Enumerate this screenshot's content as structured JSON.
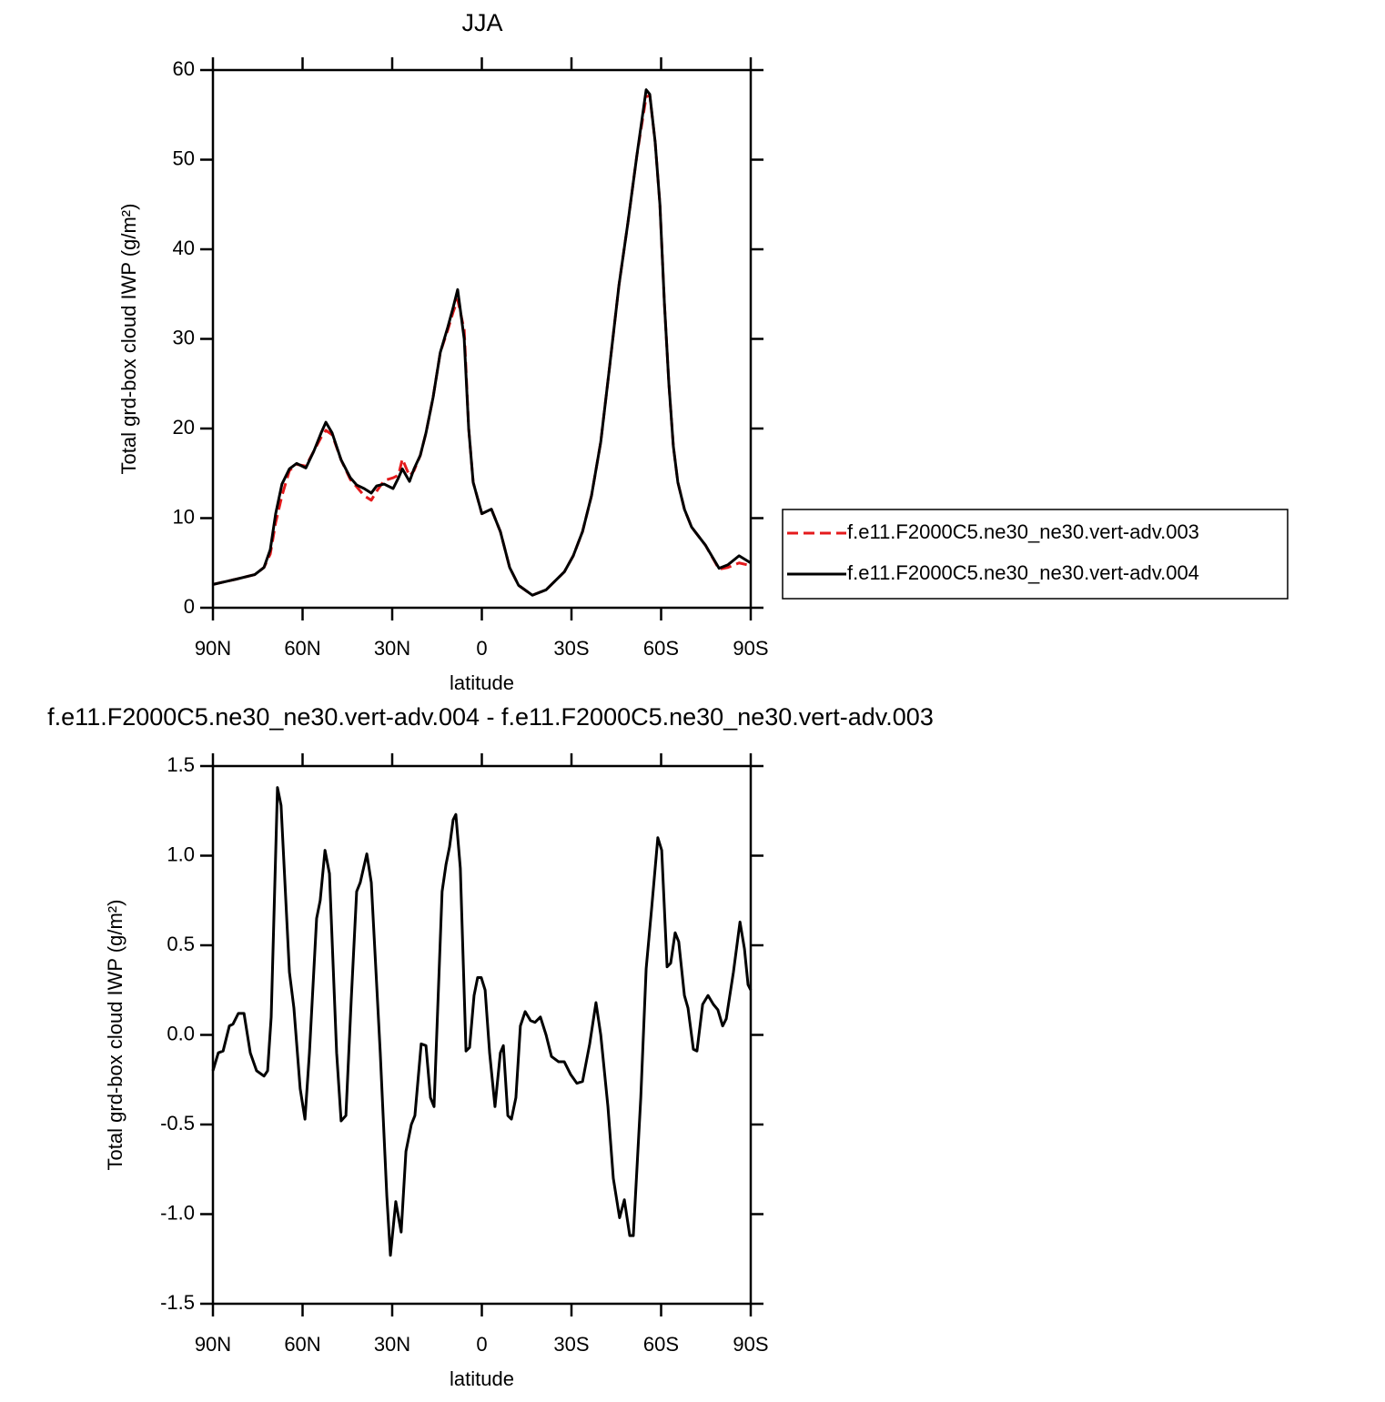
{
  "chart_data": [
    {
      "type": "line",
      "title": "JJA",
      "xlabel": "latitude",
      "ylabel": "Total grd-box cloud IWP (g/m²)",
      "x": [
        90,
        82.1,
        76,
        72.9,
        70.8,
        69,
        66.9,
        64.4,
        62,
        58.9,
        56.2,
        53.8,
        52.2,
        50.1,
        47.1,
        44,
        41.9,
        39.4,
        37,
        35.2,
        32.7,
        29.7,
        27.9,
        26.6,
        24.2,
        22.7,
        20.6,
        18.7,
        16.3,
        13.9,
        11.4,
        9.6,
        8.1,
        5.9,
        4.4,
        2.9,
        0,
        -3.2,
        -6.2,
        -9.3,
        -12.3,
        -16.9,
        -21.5,
        -27.6,
        -30.6,
        -33.7,
        -36.7,
        -39.8,
        -42.8,
        -45.9,
        -48.9,
        -51.9,
        -55,
        -56.2,
        -58,
        -59.6,
        -61.1,
        -62.6,
        -64.1,
        -65.6,
        -67.8,
        -70.2,
        -74.8,
        -79.4,
        -82.4,
        -86.1,
        -90
      ],
      "series": [
        {
          "name": "f.e11.F2000C5.ne30_ne30.vert-adv.003",
          "color": "#e41a1c",
          "dashed": true,
          "values": [
            2.6,
            3.2,
            3.7,
            4.5,
            6.0,
            9.5,
            12.5,
            15.3,
            16.0,
            15.8,
            17.5,
            19.0,
            19.8,
            19.3,
            16.5,
            14.3,
            13.5,
            12.5,
            12.0,
            13.0,
            14.2,
            14.5,
            14.8,
            16.6,
            14.7,
            15.3,
            17,
            19.5,
            23.5,
            28.5,
            31,
            33,
            34.4,
            31,
            20,
            14,
            10.5,
            11,
            8.5,
            4.5,
            2.5,
            1.4,
            2,
            4,
            5.8,
            8.5,
            12.5,
            18.5,
            27,
            36,
            43,
            50.5,
            57.0,
            57.2,
            52,
            45,
            34,
            25,
            18,
            14,
            11,
            9,
            7,
            4.3,
            4.5,
            5.0,
            4.7
          ]
        },
        {
          "name": "f.e11.F2000C5.ne30_ne30.vert-adv.004",
          "color": "#000000",
          "dashed": false,
          "values": [
            2.6,
            3.2,
            3.7,
            4.5,
            6.5,
            10.5,
            13.8,
            15.5,
            16.1,
            15.6,
            17.5,
            19.5,
            20.7,
            19.5,
            16.5,
            14.5,
            13.7,
            13.3,
            12.8,
            13.6,
            13.8,
            13.3,
            14.5,
            15.5,
            14.1,
            15.5,
            17,
            19.5,
            23.5,
            28.5,
            31.3,
            33.5,
            35.5,
            30,
            20,
            14,
            10.5,
            11,
            8.5,
            4.5,
            2.5,
            1.4,
            2,
            4,
            5.8,
            8.5,
            12.5,
            18.5,
            27,
            36,
            43,
            50.5,
            57.8,
            57.3,
            52,
            45,
            34,
            25,
            18,
            14,
            11,
            9,
            7,
            4.4,
            4.8,
            5.8,
            5.0
          ]
        }
      ],
      "xlim": [
        90,
        -90
      ],
      "xticks": [
        {
          "value": 90,
          "label": "90N"
        },
        {
          "value": 60,
          "label": "60N"
        },
        {
          "value": 30,
          "label": "30N"
        },
        0,
        {
          "value": -30,
          "label": "30S"
        },
        {
          "value": -60,
          "label": "60S"
        },
        {
          "value": -90,
          "label": "90S"
        }
      ],
      "ylim": [
        0,
        60
      ],
      "yticks": [
        0,
        10,
        20,
        30,
        40,
        50,
        60
      ],
      "legend": "right"
    },
    {
      "type": "line",
      "title": "f.e11.F2000C5.ne30_ne30.vert-adv.004 - f.e11.F2000C5.ne30_ne30.vert-adv.003",
      "xlabel": "latitude",
      "ylabel": "Total grd-box cloud IWP (g/m²)",
      "x": [
        90,
        88.2,
        86.6,
        84.5,
        83.3,
        81.5,
        79.6,
        77.5,
        75.4,
        72.9,
        71.7,
        70.5,
        68.4,
        67.2,
        64.4,
        62.9,
        60.8,
        59.2,
        57.7,
        55.3,
        54.1,
        52.5,
        51,
        48.6,
        47.1,
        45.5,
        43.7,
        41.9,
        40.7,
        38.5,
        37,
        34,
        31.8,
        30.6,
        28.8,
        27,
        25.4,
        23.6,
        22.4,
        20.3,
        18.7,
        17.2,
        16,
        13.3,
        12,
        10.8,
        9.6,
        8.7,
        7.2,
        5.3,
        4.1,
        2.6,
        1.4,
        0.2,
        -1.1,
        -2.6,
        -4.4,
        -6.2,
        -7.2,
        -8.7,
        -9.9,
        -11.4,
        -12.9,
        -14.5,
        -16.3,
        -17.8,
        -19.6,
        -21.5,
        -23.3,
        -25.7,
        -27.6,
        -29.7,
        -31.8,
        -33.7,
        -36.1,
        -38.2,
        -39.8,
        -42.2,
        -44,
        -46.1,
        -47.7,
        -49.5,
        -50.7,
        -53.2,
        -55,
        -56.8,
        -58.9,
        -60.2,
        -62,
        -63.2,
        -64.7,
        -65.9,
        -67.8,
        -69,
        -70.8,
        -72,
        -73.9,
        -75.7,
        -77.5,
        -79,
        -80.6,
        -81.8,
        -84.2,
        -86.4,
        -87.9,
        -89.1,
        -90
      ],
      "values": [
        -0.2,
        -0.1,
        -0.09,
        0.05,
        0.06,
        0.12,
        0.12,
        -0.1,
        -0.2,
        -0.23,
        -0.2,
        0.1,
        1.38,
        1.28,
        0.35,
        0.15,
        -0.3,
        -0.47,
        -0.1,
        0.65,
        0.75,
        1.03,
        0.9,
        -0.1,
        -0.48,
        -0.45,
        0.2,
        0.8,
        0.85,
        1.01,
        0.85,
        -0.1,
        -0.9,
        -1.23,
        -0.93,
        -1.1,
        -0.65,
        -0.5,
        -0.45,
        -0.05,
        -0.06,
        -0.35,
        -0.4,
        0.8,
        0.95,
        1.05,
        1.2,
        1.23,
        0.93,
        -0.09,
        -0.07,
        0.22,
        0.32,
        0.32,
        0.25,
        -0.1,
        -0.4,
        -0.1,
        -0.06,
        -0.45,
        -0.47,
        -0.35,
        0.05,
        0.13,
        0.08,
        0.07,
        0.1,
        0.0,
        -0.12,
        -0.15,
        -0.15,
        -0.22,
        -0.27,
        -0.26,
        -0.05,
        0.18,
        0.0,
        -0.4,
        -0.8,
        -1.02,
        -0.92,
        -1.12,
        -1.12,
        -0.35,
        0.37,
        0.7,
        1.1,
        1.03,
        0.38,
        0.4,
        0.57,
        0.52,
        0.22,
        0.15,
        -0.08,
        -0.09,
        0.17,
        0.22,
        0.17,
        0.14,
        0.05,
        0.09,
        0.35,
        0.63,
        0.48,
        0.28,
        0.25
      ],
      "color": "#000000",
      "xlim": [
        90,
        -90
      ],
      "xticks": [
        {
          "value": 90,
          "label": "90N"
        },
        {
          "value": 60,
          "label": "60N"
        },
        {
          "value": 30,
          "label": "30N"
        },
        0,
        {
          "value": -30,
          "label": "30S"
        },
        {
          "value": -60,
          "label": "60S"
        },
        {
          "value": -90,
          "label": "90S"
        }
      ],
      "ylim": [
        -1.5,
        1.5
      ],
      "yticks": [
        -1.5,
        {
          "value": -1.0,
          "label": "-1.0"
        },
        -0.5,
        {
          "value": 0.0,
          "label": "0.0"
        },
        0.5,
        {
          "value": 1.0,
          "label": "1.0"
        },
        1.5
      ]
    }
  ]
}
